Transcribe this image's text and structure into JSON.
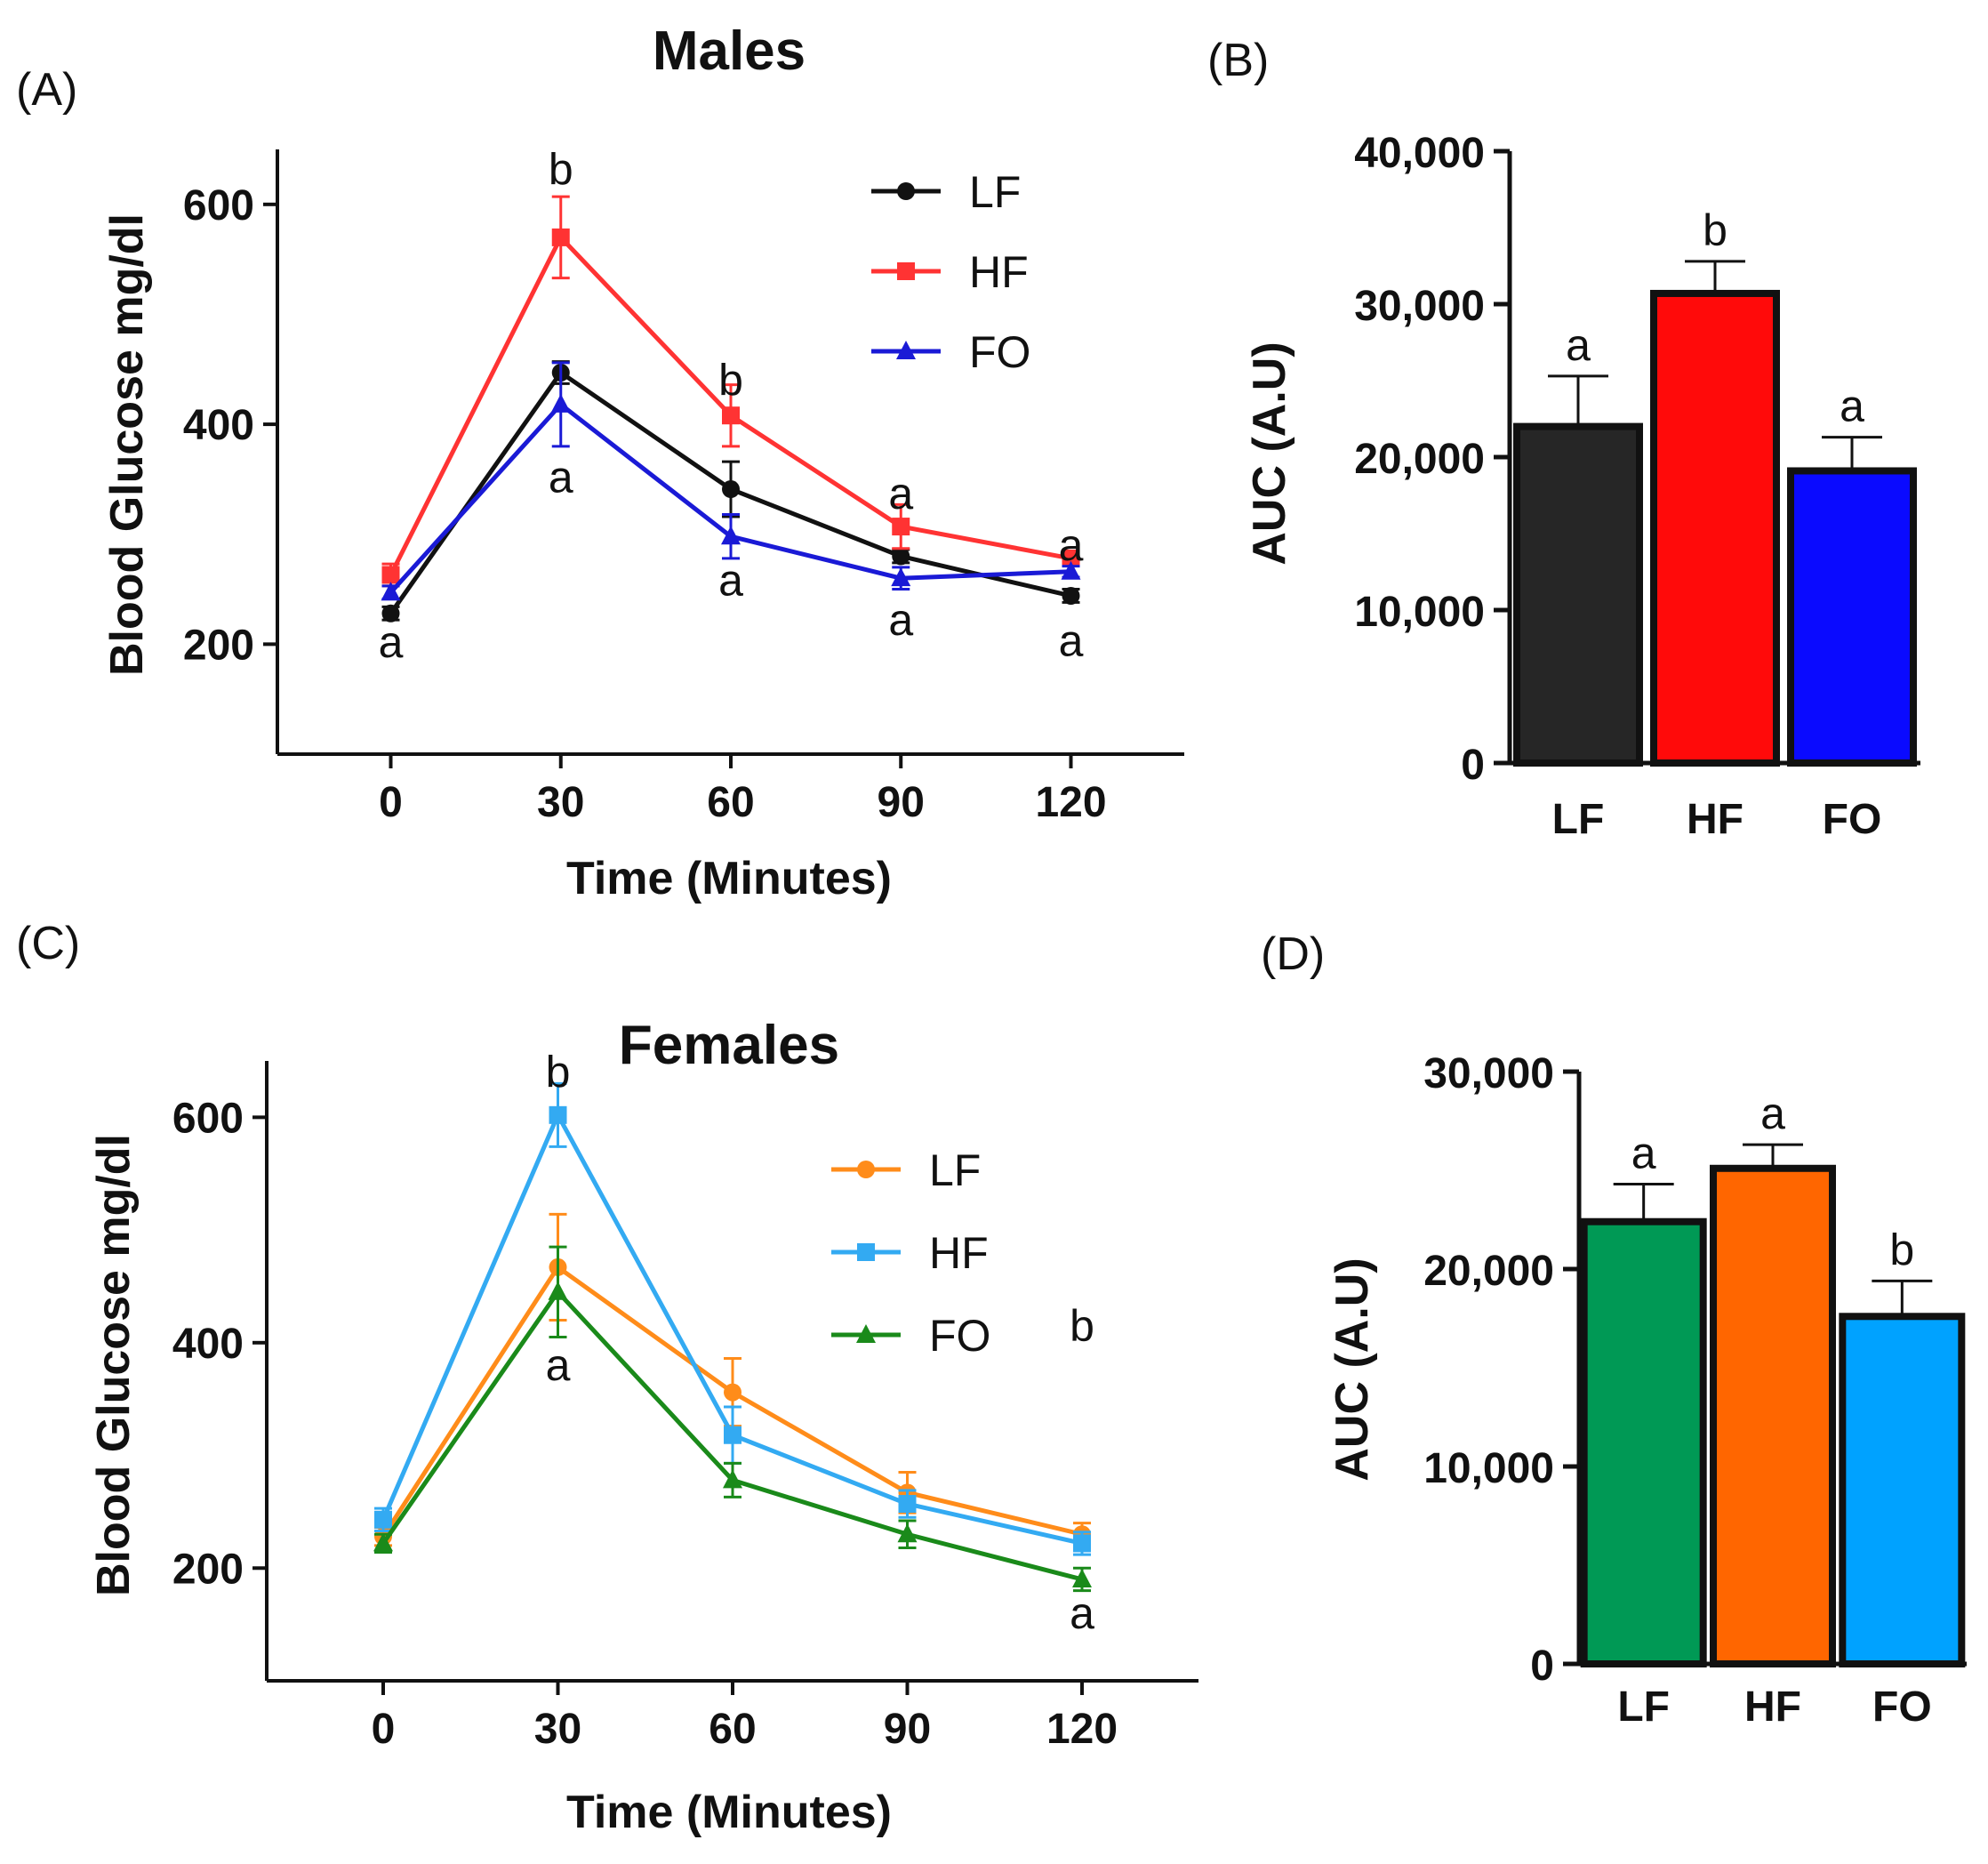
{
  "colors": {
    "males": {
      "LF": "#111111",
      "HF": "#ff3333",
      "FO": "#1a1ad6"
    },
    "females": {
      "LF": "#ff8c1a",
      "HF": "#33aaf2",
      "FO": "#1a8a1a"
    },
    "barsB": {
      "LF": "#262626",
      "HF": "#ff0a0a",
      "FO": "#0a0aff"
    },
    "barsD": {
      "LF": "#009955",
      "HF": "#ff6600",
      "FO": "#00a2ff"
    }
  },
  "chart_data": [
    {
      "id": "A",
      "panel_label": "(A)",
      "type": "line",
      "title": "Males",
      "xlabel": "Time (Minutes)",
      "ylabel": "Blood Glucose mg/dl",
      "x": [
        0,
        30,
        60,
        90,
        120
      ],
      "x_tick_labels": [
        "0",
        "30",
        "60",
        "90",
        "120"
      ],
      "xlim": [
        -20,
        140
      ],
      "ylim": [
        100,
        650
      ],
      "y_ticks": [
        200,
        400,
        600
      ],
      "y_tick_labels": [
        "200",
        "400",
        "600"
      ],
      "legend": [
        "LF",
        "HF",
        "FO"
      ],
      "legend_position": "top-right",
      "series": [
        {
          "name": "LF",
          "marker": "circle",
          "values": [
            228,
            447,
            341,
            280,
            244
          ],
          "errors": [
            6,
            10,
            25,
            6,
            6
          ]
        },
        {
          "name": "HF",
          "marker": "square",
          "values": [
            263,
            570,
            408,
            307,
            278
          ],
          "errors": [
            10,
            37,
            28,
            20,
            6
          ]
        },
        {
          "name": "FO",
          "marker": "triangle",
          "values": [
            247,
            418,
            298,
            260,
            266
          ],
          "errors": [
            6,
            38,
            20,
            10,
            5
          ]
        }
      ],
      "annotations": [
        {
          "text": "a",
          "x": 0,
          "y": 202
        },
        {
          "text": "b",
          "x": 30,
          "y": 632
        },
        {
          "text": "a",
          "x": 30,
          "y": 352
        },
        {
          "text": "b",
          "x": 60,
          "y": 440
        },
        {
          "text": "a",
          "x": 60,
          "y": 258
        },
        {
          "text": "a",
          "x": 90,
          "y": 337
        },
        {
          "text": "a",
          "x": 90,
          "y": 222
        },
        {
          "text": "a",
          "x": 120,
          "y": 290
        },
        {
          "text": "a",
          "x": 120,
          "y": 203
        }
      ]
    },
    {
      "id": "B",
      "panel_label": "(B)",
      "type": "bar",
      "ylabel": "AUC (A.U)",
      "categories": [
        "LF",
        "HF",
        "FO"
      ],
      "values": [
        22000,
        30700,
        19100
      ],
      "errors": [
        3300,
        2100,
        2200
      ],
      "ylim": [
        0,
        40000
      ],
      "y_ticks": [
        0,
        10000,
        20000,
        30000,
        40000
      ],
      "y_tick_labels": [
        "0",
        "10,000",
        "20,000",
        "30,000",
        "40,000"
      ],
      "letters": [
        "a",
        "b",
        "a"
      ]
    },
    {
      "id": "C",
      "panel_label": "(C)",
      "type": "line",
      "title": "Females",
      "xlabel": "Time (Minutes)",
      "ylabel": "Blood Glucose mg/dl",
      "x": [
        0,
        30,
        60,
        90,
        120
      ],
      "x_tick_labels": [
        "0",
        "30",
        "60",
        "90",
        "120"
      ],
      "xlim": [
        -20,
        140
      ],
      "ylim": [
        100,
        650
      ],
      "y_ticks": [
        200,
        400,
        600
      ],
      "y_tick_labels": [
        "200",
        "400",
        "600"
      ],
      "legend": [
        "LF",
        "HF",
        "FO"
      ],
      "legend_position": "right",
      "series": [
        {
          "name": "LF",
          "marker": "circle",
          "values": [
            228,
            467,
            356,
            267,
            230
          ],
          "errors": [
            8,
            47,
            30,
            18,
            10
          ]
        },
        {
          "name": "HF",
          "marker": "square",
          "values": [
            243,
            602,
            318,
            257,
            222
          ],
          "errors": [
            10,
            28,
            25,
            12,
            10
          ]
        },
        {
          "name": "FO",
          "marker": "triangle",
          "values": [
            222,
            445,
            278,
            230,
            190
          ],
          "errors": [
            8,
            40,
            15,
            12,
            10
          ]
        }
      ],
      "annotations": [
        {
          "text": "b",
          "x": 30,
          "y": 640
        },
        {
          "text": "a",
          "x": 30,
          "y": 380
        },
        {
          "text": "b",
          "x": 120,
          "y": 415
        },
        {
          "text": "a",
          "x": 120,
          "y": 160
        }
      ]
    },
    {
      "id": "D",
      "panel_label": "(D)",
      "type": "bar",
      "ylabel": "AUC (A.U)",
      "categories": [
        "LF",
        "HF",
        "FO"
      ],
      "values": [
        22400,
        25100,
        17600
      ],
      "errors": [
        1900,
        1200,
        1800
      ],
      "ylim": [
        0,
        30000
      ],
      "y_ticks": [
        0,
        10000,
        20000,
        30000
      ],
      "y_tick_labels": [
        "0",
        "10,000",
        "20,000",
        "30,000"
      ],
      "letters": [
        "a",
        "a",
        "b"
      ]
    }
  ]
}
